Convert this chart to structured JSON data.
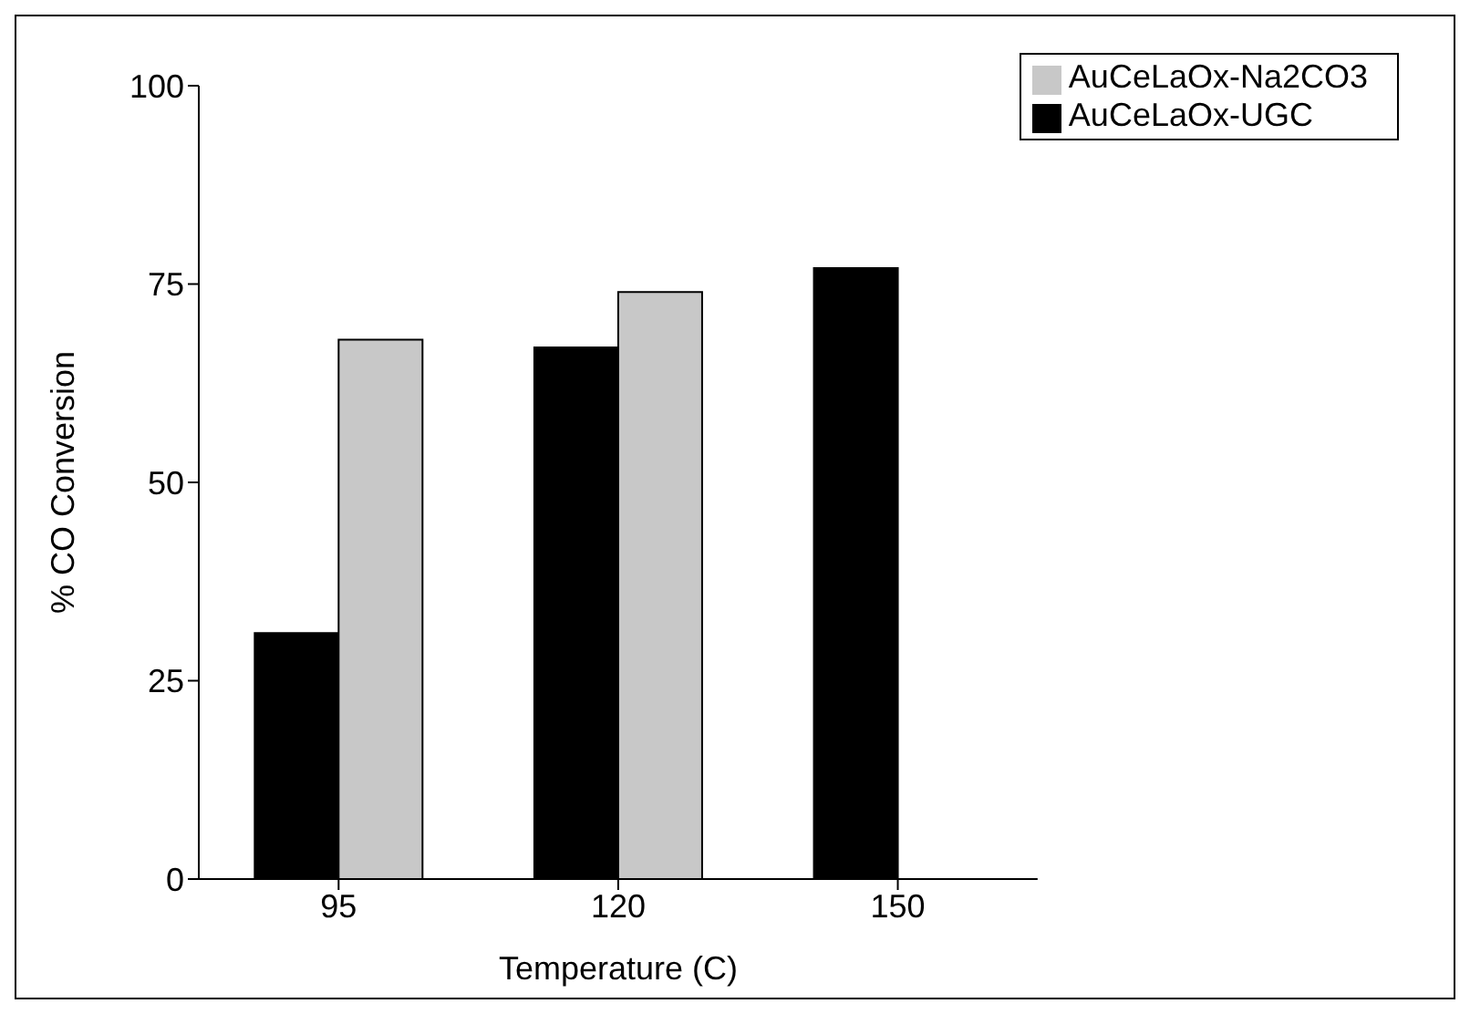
{
  "chart_data": {
    "type": "bar",
    "xlabel": "Temperature (C)",
    "ylabel": "% CO Conversion",
    "categories": [
      "95",
      "120",
      "150"
    ],
    "series": [
      {
        "name": "AuCeLaOx-UGC",
        "color": "#000000",
        "values": [
          31,
          67,
          77
        ]
      },
      {
        "name": "AuCeLaOx-Na2CO3",
        "color": "#c8c8c8",
        "values": [
          68,
          74,
          null
        ]
      }
    ],
    "ylim": [
      0,
      100
    ],
    "yticks": [
      0,
      25,
      50,
      75,
      100
    ],
    "grid": false,
    "legend": "top right"
  }
}
